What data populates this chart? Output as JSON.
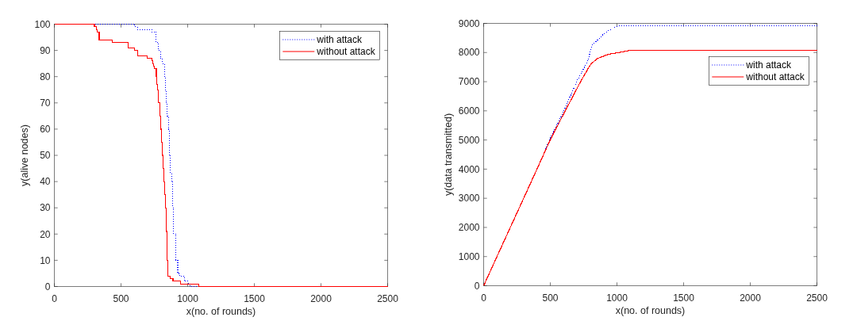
{
  "chart_data": [
    {
      "type": "step",
      "xlabel": "x(no. of rounds)",
      "ylabel": "y(alive nodes)",
      "xlim": [
        0,
        2500
      ],
      "ylim": [
        0,
        100
      ],
      "xticks": [
        0,
        500,
        1000,
        1500,
        2000,
        2500
      ],
      "yticks": [
        0,
        10,
        20,
        30,
        40,
        50,
        60,
        70,
        80,
        90,
        100
      ],
      "legend": "top right",
      "series": [
        {
          "name": "with attack",
          "color": "#0000ff",
          "line_style": "dotted",
          "x": [
            0,
            603,
            623,
            732,
            762,
            782,
            797,
            811,
            825,
            831,
            837,
            847,
            855,
            861,
            871,
            880,
            887,
            895,
            911,
            925,
            940,
            975,
            1005,
            1020,
            2500
          ],
          "values": [
            100,
            99,
            98,
            97,
            93,
            90,
            87,
            85,
            80,
            75,
            70,
            65,
            60,
            50,
            43,
            40,
            30,
            20,
            10,
            5,
            4,
            2,
            1,
            0,
            0
          ]
        },
        {
          "name": "without attack",
          "color": "#ff0000",
          "line_style": "solid",
          "x": [
            0,
            301,
            315,
            323,
            336,
            434,
            553,
            603,
            627,
            696,
            730,
            737,
            745,
            752,
            765,
            770,
            775,
            782,
            790,
            797,
            803,
            810,
            815,
            821,
            826,
            831,
            837,
            845,
            853,
            871,
            890,
            946,
            1085,
            2500
          ],
          "values": [
            100,
            99,
            98,
            97,
            94,
            93,
            91,
            90,
            88,
            87,
            86,
            85,
            84,
            83,
            80,
            77,
            75,
            70,
            65,
            60,
            55,
            50,
            45,
            40,
            35,
            30,
            21,
            10,
            4,
            3,
            2,
            1,
            0,
            0
          ]
        }
      ]
    },
    {
      "type": "line",
      "xlabel": "x(no. of rounds)",
      "ylabel": "y(data transmitted)",
      "xlim": [
        0,
        2500
      ],
      "ylim": [
        0,
        9000
      ],
      "xticks": [
        0,
        500,
        1000,
        1500,
        2000,
        2500
      ],
      "yticks": [
        0,
        1000,
        2000,
        3000,
        4000,
        5000,
        6000,
        7000,
        8000,
        9000
      ],
      "legend": "top right",
      "series": [
        {
          "name": "with attack",
          "color": "#0000ff",
          "line_style": "dotted",
          "x": [
            0,
            400,
            495,
            602,
            697,
            773,
            816,
            856,
            895,
            955,
            1005,
            1015,
            2500
          ],
          "values": [
            0,
            4000,
            5000,
            6000,
            7000,
            7640,
            8250,
            8440,
            8620,
            8800,
            8900,
            8920,
            8920
          ]
        },
        {
          "name": "without attack",
          "color": "#ff0000",
          "line_style": "solid",
          "x": [
            0,
            400,
            499,
            612,
            727,
            790,
            807,
            856,
            936,
            1015,
            1094,
            2500
          ],
          "values": [
            0,
            4000,
            5000,
            6000,
            7000,
            7500,
            7620,
            7800,
            7940,
            8000,
            8070,
            8070
          ]
        }
      ]
    }
  ]
}
